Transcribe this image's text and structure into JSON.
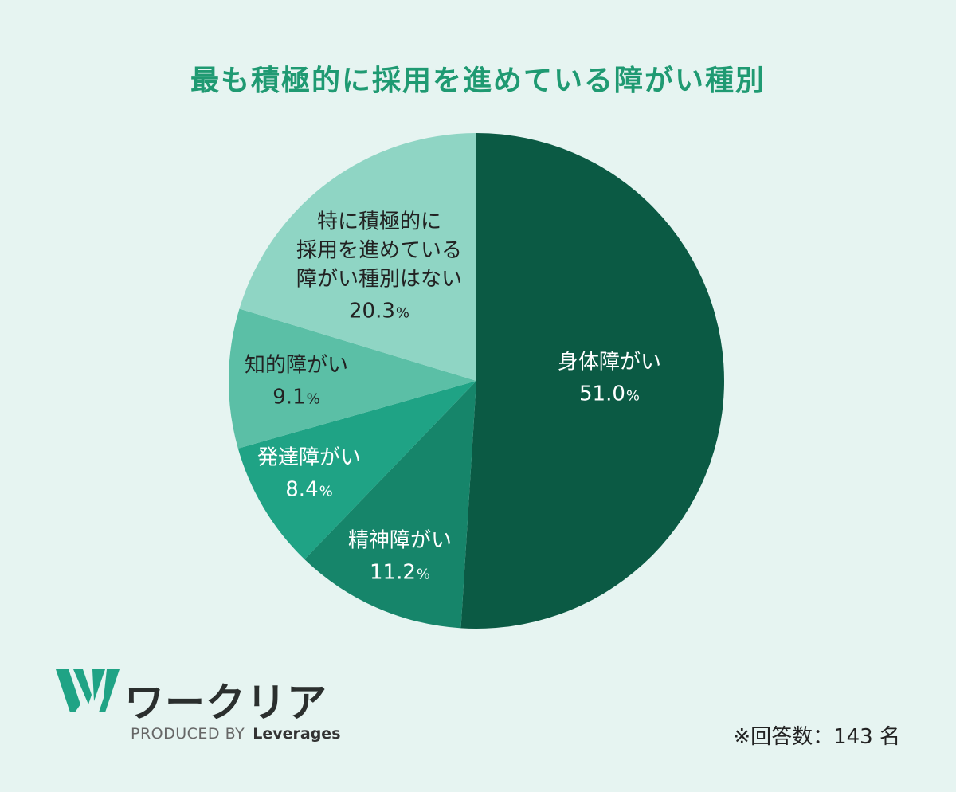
{
  "title": "最も積極的に採用を進めている障がい種別",
  "chart_data": {
    "type": "pie",
    "title": "最も積極的に採用を進めている障がい種別",
    "unit": "%",
    "slices": [
      {
        "label": "身体障がい",
        "value": 51.0,
        "value_text": "51.0",
        "color": "#0b5a44",
        "text_color": "#ffffff"
      },
      {
        "label": "精神障がい",
        "value": 11.2,
        "value_text": "11.2",
        "color": "#16856a",
        "text_color": "#ffffff"
      },
      {
        "label": "発達障がい",
        "value": 8.4,
        "value_text": "8.4",
        "color": "#1fa385",
        "text_color": "#ffffff"
      },
      {
        "label": "知的障がい",
        "value": 9.1,
        "value_text": "9.1",
        "color": "#5bbfa6",
        "text_color": "#222222"
      },
      {
        "label": "特に積極的に\n採用を進めている\n障がい種別はない",
        "value": 20.3,
        "value_text": "20.3",
        "color": "#8fd5c4",
        "text_color": "#222222"
      }
    ]
  },
  "logo": {
    "name": "ワークリア",
    "produced_by": "PRODUCED BY",
    "brand": "Leverages",
    "accent_color": "#1fa385"
  },
  "note": "※回答数：143 名"
}
